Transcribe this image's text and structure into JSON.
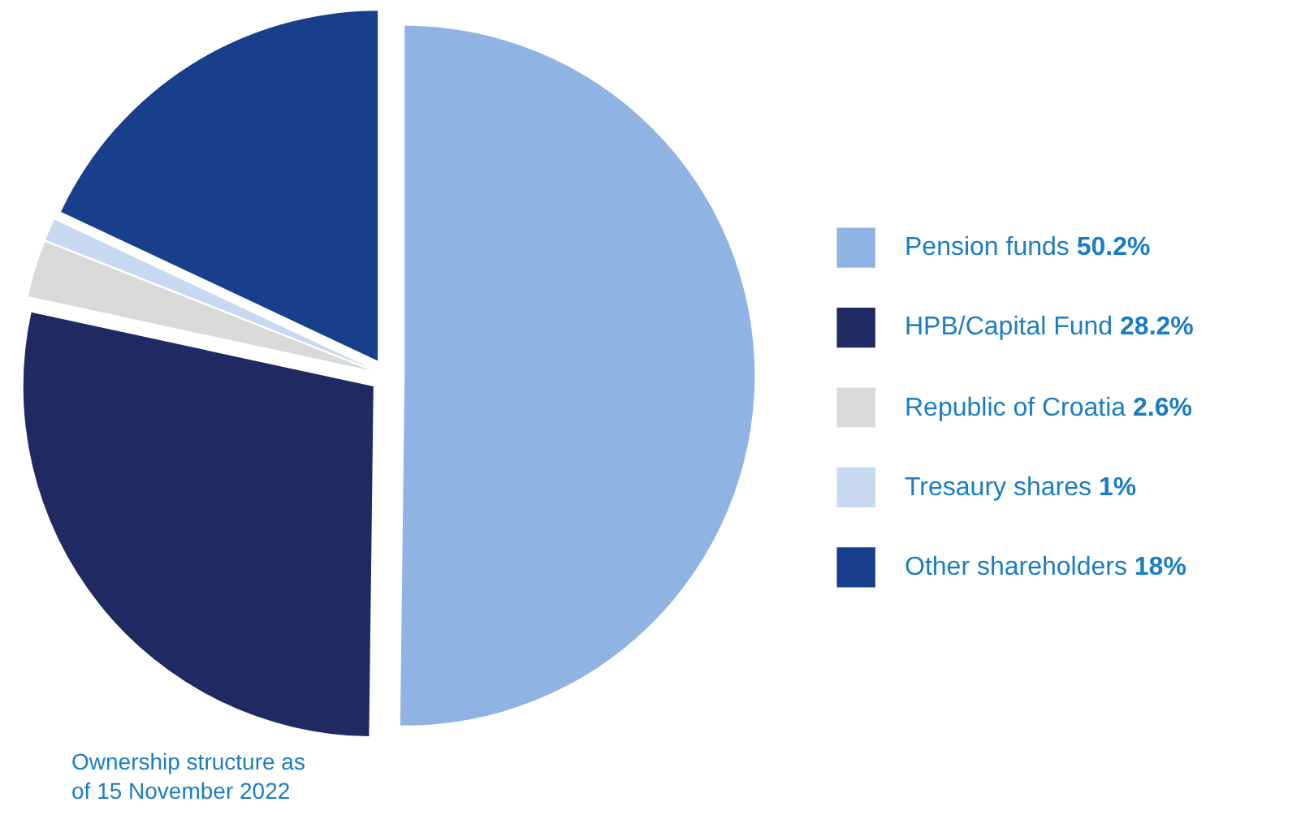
{
  "chart_data": {
    "type": "pie",
    "categories": [
      "Pension funds",
      "HPB/Capital Fund",
      "Republic of Croatia",
      "Tresaury shares",
      "Other shareholders"
    ],
    "values": [
      50.2,
      28.2,
      2.6,
      1,
      18
    ],
    "value_labels": [
      "50.2%",
      "28.2%",
      "2.6%",
      "1%",
      "18%"
    ],
    "colors": [
      "#8fb4e3",
      "#1f2a63",
      "#d9d9d9",
      "#c6d9f0",
      "#173f8c"
    ],
    "legend": "right",
    "annotations": [
      "Ownership structure as\nof 15 November 2022"
    ]
  }
}
